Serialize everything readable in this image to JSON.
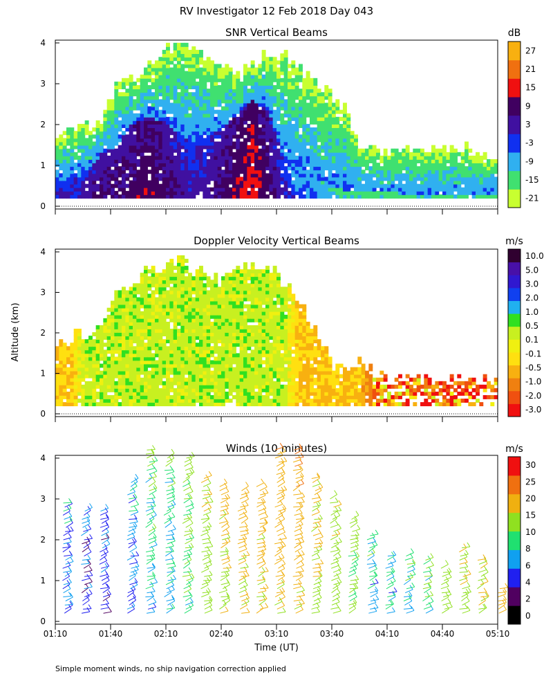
{
  "figure_title": "RV Investigator  12 Feb 2018 Day 043",
  "footnote": "Simple moment winds, no ship navigation correction applied",
  "x_axis": {
    "label": "Time (UT)",
    "range_minutes": [
      70,
      310
    ],
    "ticks": [
      "01:10",
      "01:40",
      "02:10",
      "02:40",
      "03:10",
      "03:40",
      "04:10",
      "04:40",
      "05:10"
    ],
    "tick_minutes": [
      70,
      100,
      130,
      160,
      190,
      220,
      250,
      280,
      310
    ]
  },
  "y_axis": {
    "label": "Altitude (km)",
    "range_km": [
      0,
      4
    ],
    "ticks": [
      "0",
      "1",
      "2",
      "3",
      "4"
    ]
  },
  "colors": {
    "snr": [
      "#c8ff30",
      "#40e070",
      "#30b0f0",
      "#1030f0",
      "#4010a0",
      "#400060",
      "#f01010",
      "#f07010",
      "#f8b010"
    ],
    "velocity": [
      "#f01010",
      "#f05010",
      "#f08010",
      "#f8b010",
      "#ffe010",
      "#f0f010",
      "#c8f020",
      "#30e020",
      "#20b0f0",
      "#1040f0",
      "#3018d0",
      "#4810a8",
      "#300030"
    ],
    "winds": [
      "#000000",
      "#500060",
      "#2020f0",
      "#10a0f0",
      "#20e070",
      "#90e020",
      "#f0b010",
      "#f07010",
      "#f01010"
    ]
  },
  "chart_data": [
    {
      "type": "heatmap",
      "title": "SNR Vertical Beams",
      "units": "dB",
      "xlabel": "",
      "ylabel": "",
      "colorbar_ticks": [
        "-21",
        "-15",
        "-9",
        "-3",
        "3",
        "9",
        "15",
        "21",
        "27"
      ],
      "ylim": [
        0,
        4
      ],
      "echo_top_km": [
        1.8,
        1.9,
        2.0,
        2.2,
        2.9,
        3.1,
        3.3,
        3.8,
        4.0,
        3.8,
        3.6,
        3.4,
        3.2,
        3.5,
        3.8,
        3.7,
        3.4,
        3.1,
        2.8,
        2.4,
        1.4,
        1.35,
        1.35,
        1.4,
        1.45,
        1.45,
        1.45,
        1.45,
        1.35,
        1.3
      ],
      "strong_layer_top_km": [
        0.6,
        0.7,
        0.8,
        1.3,
        1.5,
        2.0,
        2.2,
        2.1,
        1.8,
        1.6,
        1.7,
        1.9,
        2.3,
        2.6,
        2.3,
        1.2,
        0.9,
        0.7,
        0.5,
        0.4,
        0.35,
        0.35,
        0.35,
        0.3,
        0.3,
        0.3,
        0.3,
        0.3,
        0.3,
        0.3
      ],
      "max_snr_db": [
        3,
        3,
        5,
        8,
        9,
        9,
        12,
        9,
        6,
        3,
        6,
        9,
        12,
        15,
        9,
        3,
        -3,
        -3,
        -9,
        -9,
        -9,
        -9,
        -9,
        -9,
        -9,
        -9,
        -9,
        -9,
        -9,
        -9
      ]
    },
    {
      "type": "heatmap",
      "title": "Doppler Velocity Vertical Beams",
      "units": "m/s",
      "xlabel": "",
      "ylabel": "Altitude (km)",
      "colorbar_ticks": [
        "-3.0",
        "-2.0",
        "-1.0",
        "-0.5",
        "-0.1",
        "0.1",
        "0.5",
        "1.0",
        "2.0",
        "3.0",
        "5.0",
        "10.0"
      ],
      "ylim": [
        0,
        4
      ],
      "echo_top_km": [
        1.8,
        1.9,
        2.0,
        2.3,
        3.0,
        3.3,
        3.5,
        3.6,
        3.8,
        3.6,
        3.4,
        3.3,
        3.5,
        3.7,
        3.6,
        3.3,
        2.8,
        2.2,
        1.3,
        1.2,
        1.2,
        1.0,
        0.85,
        0.85,
        0.85,
        0.85,
        0.85,
        0.85,
        0.85,
        0.85
      ],
      "dominant_velocity_ms": [
        -0.5,
        -0.5,
        0.3,
        0.3,
        0.3,
        0.3,
        0.3,
        0.3,
        0.3,
        0.3,
        0.3,
        0.3,
        0.3,
        0.3,
        0.3,
        0.3,
        -0.5,
        -0.5,
        -0.5,
        -0.5,
        -0.5,
        -2,
        -2,
        -2,
        -2,
        -2,
        -2,
        -2,
        -2,
        -2
      ]
    },
    {
      "type": "scatter",
      "title": "Winds (10 minutes)",
      "units": "m/s",
      "xlabel": "Time (UT)",
      "ylabel": "",
      "colorbar_ticks": [
        "0",
        "2",
        "4",
        "6",
        "8",
        "10",
        "15",
        "20",
        "25",
        "30"
      ],
      "ylim": [
        0,
        4
      ],
      "x_minutes": [
        75,
        85,
        95,
        110,
        120,
        130,
        140,
        150,
        160,
        170,
        180,
        190,
        200,
        210,
        220,
        230,
        240,
        250,
        260,
        270,
        280,
        290,
        300,
        310
      ],
      "profile_top_km": [
        3.0,
        2.8,
        2.8,
        3.5,
        4.2,
        4.1,
        4.1,
        3.6,
        3.4,
        3.3,
        3.4,
        4.2,
        4.2,
        3.6,
        3.1,
        2.6,
        2.1,
        1.6,
        1.6,
        1.5,
        1.4,
        1.8,
        1.5,
        0.9
      ],
      "speed_ms": [
        5,
        4,
        4,
        5,
        7,
        7,
        9,
        12,
        14,
        15,
        15,
        16,
        16,
        14,
        12,
        10,
        7,
        7,
        8,
        9,
        12,
        13,
        14,
        18
      ]
    }
  ]
}
